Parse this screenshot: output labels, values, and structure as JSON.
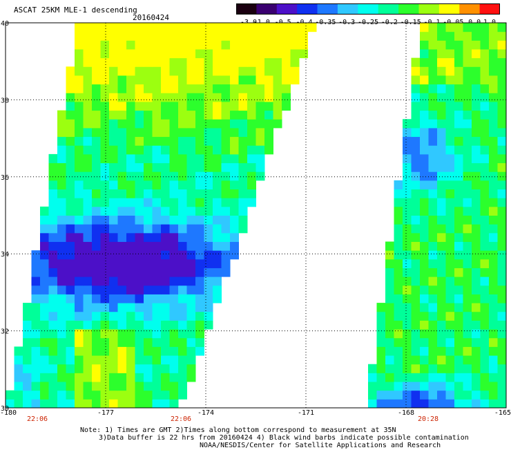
{
  "header": {
    "title": "ASCAT 25KM MLE-1 descending",
    "date": "20160424"
  },
  "colorbar": {
    "ticks": [
      "-3.0",
      "-1.0",
      "-0.5",
      "-0.4",
      "-0.35",
      "-0.3",
      "-0.25",
      "-0.2",
      "-0.15",
      "-0.1",
      "-0.05",
      "0.0",
      "1.0"
    ],
    "colors": [
      "#1a0010",
      "#3a0070",
      "#4c10c8",
      "#1030f0",
      "#1e78ff",
      "#30c8ff",
      "#00ffee",
      "#00ff99",
      "#2cff2c",
      "#9cff10",
      "#ffff00",
      "#ff9000",
      "#ff1010"
    ]
  },
  "map": {
    "lon_ticks": [
      "-180",
      "-177",
      "-174",
      "-171",
      "-168",
      "-165"
    ],
    "lat_ticks": [
      "40",
      "38",
      "36",
      "34",
      "32",
      "30"
    ],
    "lon_range": [
      -180,
      -165
    ],
    "lat_range": [
      30,
      40
    ],
    "grid": "dotted",
    "swath_times": [
      "22:06",
      "22:06",
      "20:28"
    ],
    "time_color": "#cc2200"
  },
  "notes": {
    "line1": "Note: 1) Times are GMT 2)Times along bottom correspond to measurement at 35N",
    "line2": "3)Data buffer is 22 hrs from 20160424 4) Black wind barbs indicate possible contamination",
    "line3": "NOAA/NESDIS/Center for Satellite Applications and Research"
  }
}
